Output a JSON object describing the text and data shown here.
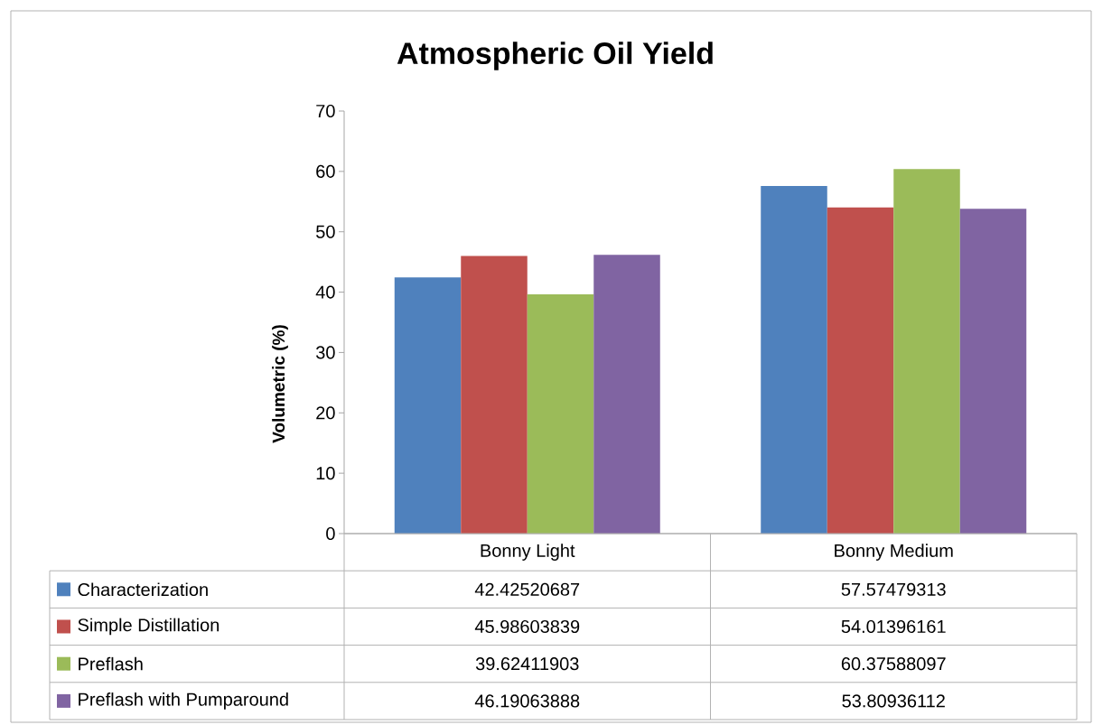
{
  "chart_data": {
    "type": "bar",
    "title": "Atmospheric Oil Yield",
    "ylabel": "Volumetric (%)",
    "categories": [
      "Bonny Light",
      "Bonny Medium"
    ],
    "series": [
      {
        "name": "Characterization",
        "color": "#4f81bd",
        "values": [
          42.42520687,
          57.57479313
        ]
      },
      {
        "name": "Simple Distillation",
        "color": "#c0504d",
        "values": [
          45.98603839,
          54.01396161
        ]
      },
      {
        "name": "Preflash",
        "color": "#9bbb59",
        "values": [
          39.62411903,
          60.37588097
        ]
      },
      {
        "name": "Preflash with Pumparound",
        "color": "#8064a2",
        "values": [
          46.19063888,
          53.80936112
        ]
      }
    ],
    "ylim": [
      0,
      70
    ],
    "yticks": [
      0,
      10,
      20,
      30,
      40,
      50,
      60,
      70
    ],
    "data_labels": true,
    "legend": "bottom"
  }
}
